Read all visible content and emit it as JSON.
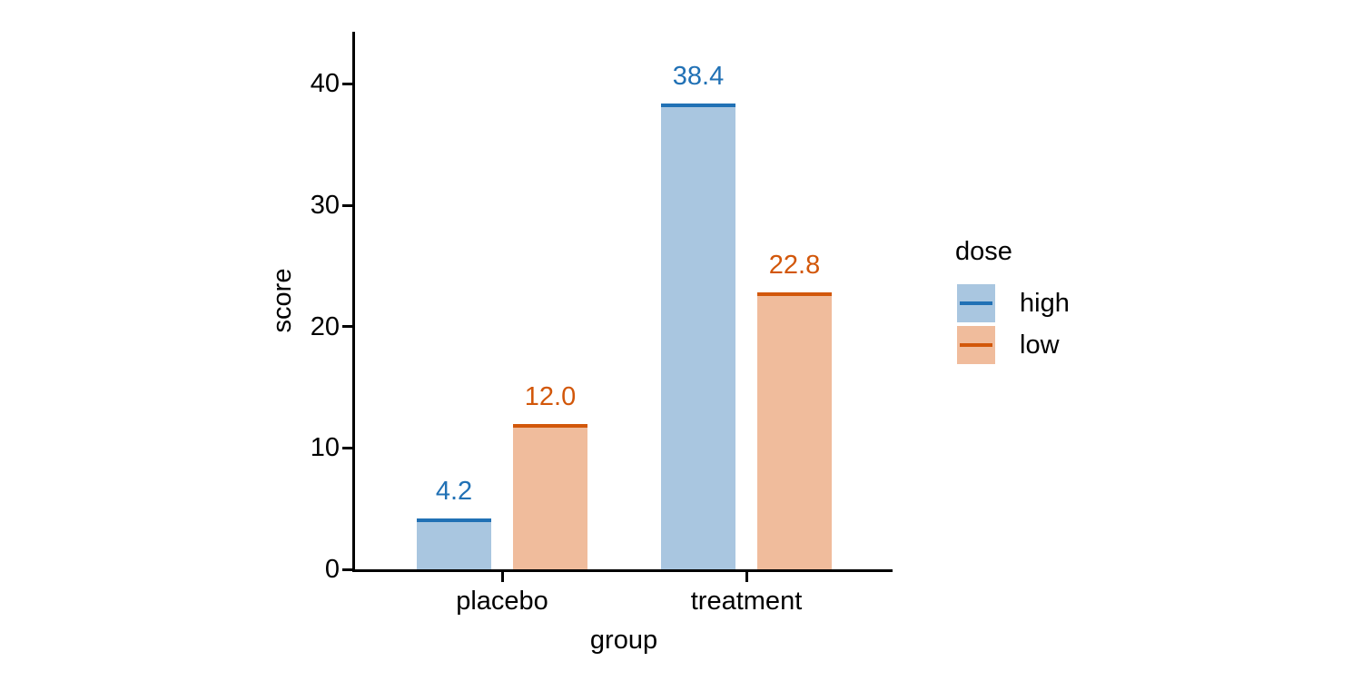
{
  "figure": {
    "background_color": "#ffffff",
    "text_color": "#000000",
    "axis_color": "#000000"
  },
  "chart_data": {
    "type": "bar",
    "title": "",
    "xlabel": "group",
    "ylabel": "score",
    "categories": [
      "placebo",
      "treatment"
    ],
    "series": [
      {
        "name": "high",
        "values": [
          4.2,
          38.4
        ],
        "labels": [
          "4.2",
          "38.4"
        ],
        "edge_color": "#2171b5",
        "fill_color": "#a9c6e0"
      },
      {
        "name": "low",
        "values": [
          12.0,
          22.8
        ],
        "labels": [
          "12.0",
          "22.8"
        ],
        "edge_color": "#d2570a",
        "fill_color": "#f0bc9c"
      }
    ],
    "ylim": [
      0,
      44.3
    ],
    "yticks": [
      0,
      10,
      20,
      30,
      40
    ],
    "ytick_labels": [
      "0",
      "10",
      "20",
      "30",
      "40"
    ],
    "grid": false,
    "bar_labels_shown": true,
    "legend": {
      "title": "dose",
      "position": "right-of-plot",
      "entries": [
        "high",
        "low"
      ]
    }
  }
}
